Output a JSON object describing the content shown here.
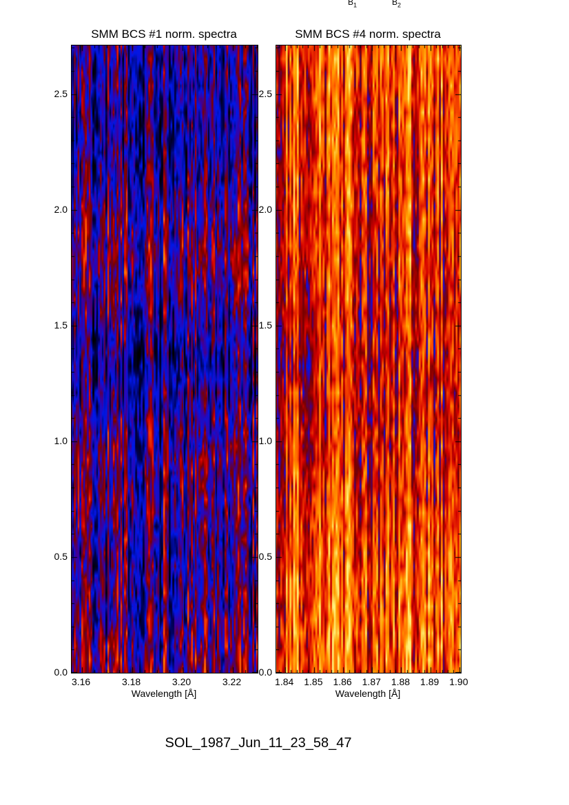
{
  "colors": {
    "background": "#ffffff",
    "axis": "#000000",
    "text": "#000000"
  },
  "top_labels": {
    "b1_base": "B",
    "b1_sub": "1",
    "b2_base": "B",
    "b2_sub": "2"
  },
  "footer": {
    "label": "SOL_1987_Jun_11_23_58_47"
  },
  "chart_data": [
    {
      "type": "heatmap",
      "title": "SMM BCS #1 norm. spectra",
      "xlabel": "Wavelength [Å]",
      "ylabel": "",
      "xlim": [
        3.156,
        3.23
      ],
      "ylim": [
        0.0,
        2.71
      ],
      "xticks": [
        3.16,
        3.18,
        3.2,
        3.22
      ],
      "xtick_labels": [
        "3.16",
        "3.18",
        "3.20",
        "3.22"
      ],
      "x_minor_step": 0.005,
      "yticks": [
        0.0,
        0.5,
        1.0,
        1.5,
        2.0,
        2.5
      ],
      "ytick_labels": [
        "0.0",
        "0.5",
        "1.0",
        "1.5",
        "2.0",
        "2.5"
      ],
      "y_minor_step": 0.1,
      "grid": false,
      "legend": "none",
      "description": "Normalized X-ray spectra intensity map: narrow vertical wavelength stripes of black/blue/red/orange/yellow noise; overall darker (black and blue dominant) than companion panel.",
      "colormap": [
        [
          0.0,
          "#000000"
        ],
        [
          0.1,
          "#000050"
        ],
        [
          0.22,
          "#0018e8"
        ],
        [
          0.33,
          "#3c00a0"
        ],
        [
          0.45,
          "#780000"
        ],
        [
          0.58,
          "#d40000"
        ],
        [
          0.72,
          "#ff5a00"
        ],
        [
          0.85,
          "#ffa000"
        ],
        [
          1.0,
          "#fff07a"
        ]
      ],
      "render": {
        "seed": 19871,
        "columns": 100,
        "rows": 48,
        "bands": 7,
        "gain": 0.95,
        "bias": -0.12,
        "gamma": 1.35
      }
    },
    {
      "type": "heatmap",
      "title": "SMM BCS #4 norm. spectra",
      "xlabel": "Wavelength [Å]",
      "ylabel": "",
      "xlim": [
        1.837,
        1.9005
      ],
      "ylim": [
        0.0,
        2.71
      ],
      "xticks": [
        1.84,
        1.85,
        1.86,
        1.87,
        1.88,
        1.89,
        1.9
      ],
      "xtick_labels": [
        "1.84",
        "1.85",
        "1.86",
        "1.87",
        "1.88",
        "1.89",
        "1.90"
      ],
      "x_minor_step": 0.002,
      "yticks": [
        0.0,
        0.5,
        1.0,
        1.5,
        2.0,
        2.5
      ],
      "ytick_labels": [
        "0.0",
        "0.5",
        "1.0",
        "1.5",
        "2.0",
        "2.5"
      ],
      "y_minor_step": 0.1,
      "grid": false,
      "legend": "none",
      "description": "Normalized X-ray spectra intensity map: narrow vertical wavelength stripes; overall brighter with widespread red/orange/yellow, strongest band near y 1.2-1.5.",
      "colormap": [
        [
          0.0,
          "#000000"
        ],
        [
          0.1,
          "#000050"
        ],
        [
          0.22,
          "#0018e8"
        ],
        [
          0.33,
          "#3c00a0"
        ],
        [
          0.45,
          "#780000"
        ],
        [
          0.58,
          "#d40000"
        ],
        [
          0.72,
          "#ff5a00"
        ],
        [
          0.85,
          "#ffa000"
        ],
        [
          1.0,
          "#fff07a"
        ]
      ],
      "render": {
        "seed": 61123,
        "columns": 100,
        "rows": 48,
        "bands": 7,
        "gain": 1.0,
        "bias": 0.02,
        "gamma": 0.85
      }
    }
  ]
}
